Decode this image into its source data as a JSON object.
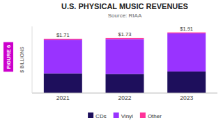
{
  "chart_data": {
    "type": "bar",
    "stacked": true,
    "title": "U.S. PHYSICAL MUSIC REVENUES",
    "subtitle": "Source: RIAA",
    "y_label": "$ BILLIONS",
    "categories": [
      "2021",
      "2022",
      "2023"
    ],
    "series": [
      {
        "name": "CDs",
        "color": "#1e0f5c",
        "values": [
          0.62,
          0.6,
          0.68
        ]
      },
      {
        "name": "Vinyl",
        "color": "#9933ff",
        "values": [
          1.06,
          1.1,
          1.2
        ]
      },
      {
        "name": "Other",
        "color": "#ff3399",
        "values": [
          0.03,
          0.03,
          0.03
        ]
      }
    ],
    "totals": [
      1.71,
      1.73,
      1.91
    ],
    "total_labels": [
      "$1.71",
      "$1.73",
      "$1.91"
    ],
    "figure_label": {
      "text": "FIGURE 6",
      "color": "#cc00cc"
    },
    "ylim": [
      0,
      2.1
    ],
    "tick_labels": "x",
    "grid": false,
    "legend": "bottom"
  }
}
